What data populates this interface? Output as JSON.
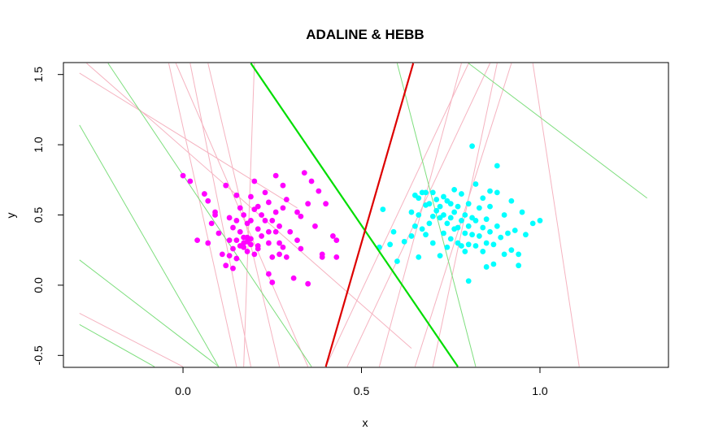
{
  "chart_data": {
    "type": "scatter",
    "title": "ADALINE & HEBB",
    "xlabel": "x",
    "ylabel": "y",
    "xlim": [
      -0.335,
      1.36
    ],
    "ylim": [
      -0.585,
      1.585
    ],
    "x_ticks": [
      "0.0",
      "0.5",
      "1.0"
    ],
    "x_tick_values": [
      0.0,
      0.5,
      1.0
    ],
    "y_ticks": [
      "-0.5",
      "0.0",
      "0.5",
      "1.0",
      "1.5"
    ],
    "y_tick_values": [
      -0.5,
      0.0,
      0.5,
      1.0,
      1.5
    ],
    "grid": false,
    "legend": "none",
    "colors": {
      "class_a": "#ff00ff",
      "class_b": "#00ffff",
      "adaline_iterations": "#7ede7e",
      "hebb_iterations": "#f5b3c0",
      "adaline_final": "#00dd00",
      "hebb_final": "#dd0000"
    },
    "series": [
      {
        "role": "class_a",
        "points": [
          [
            0.0,
            0.78
          ],
          [
            0.02,
            0.74
          ],
          [
            0.04,
            0.32
          ],
          [
            0.06,
            0.65
          ],
          [
            0.07,
            0.6
          ],
          [
            0.07,
            0.3
          ],
          [
            0.08,
            0.44
          ],
          [
            0.09,
            0.52
          ],
          [
            0.09,
            0.5
          ],
          [
            0.1,
            0.37
          ],
          [
            0.11,
            0.22
          ],
          [
            0.12,
            0.14
          ],
          [
            0.12,
            0.71
          ],
          [
            0.13,
            0.48
          ],
          [
            0.13,
            0.32
          ],
          [
            0.14,
            0.41
          ],
          [
            0.14,
            0.26
          ],
          [
            0.14,
            0.12
          ],
          [
            0.15,
            0.64
          ],
          [
            0.15,
            0.46
          ],
          [
            0.15,
            0.32
          ],
          [
            0.15,
            0.19
          ],
          [
            0.16,
            0.55
          ],
          [
            0.16,
            0.38
          ],
          [
            0.16,
            0.28
          ],
          [
            0.17,
            0.5
          ],
          [
            0.17,
            0.34
          ],
          [
            0.17,
            0.3
          ],
          [
            0.17,
            0.27
          ],
          [
            0.18,
            0.44
          ],
          [
            0.18,
            0.34
          ],
          [
            0.18,
            0.31
          ],
          [
            0.18,
            0.24
          ],
          [
            0.19,
            0.63
          ],
          [
            0.19,
            0.46
          ],
          [
            0.19,
            0.33
          ],
          [
            0.19,
            0.29
          ],
          [
            0.2,
            0.74
          ],
          [
            0.2,
            0.54
          ],
          [
            0.2,
            0.22
          ],
          [
            0.21,
            0.56
          ],
          [
            0.21,
            0.4
          ],
          [
            0.21,
            0.28
          ],
          [
            0.21,
            0.26
          ],
          [
            0.22,
            0.5
          ],
          [
            0.22,
            0.35
          ],
          [
            0.23,
            0.66
          ],
          [
            0.23,
            0.46
          ],
          [
            0.24,
            0.59
          ],
          [
            0.24,
            0.38
          ],
          [
            0.24,
            0.3
          ],
          [
            0.24,
            0.08
          ],
          [
            0.25,
            0.46
          ],
          [
            0.25,
            0.2
          ],
          [
            0.26,
            0.78
          ],
          [
            0.26,
            0.52
          ],
          [
            0.26,
            0.38
          ],
          [
            0.27,
            0.42
          ],
          [
            0.27,
            0.3
          ],
          [
            0.27,
            0.22
          ],
          [
            0.28,
            0.71
          ],
          [
            0.28,
            0.55
          ],
          [
            0.28,
            0.27
          ],
          [
            0.29,
            0.61
          ],
          [
            0.29,
            0.2
          ],
          [
            0.3,
            0.38
          ],
          [
            0.31,
            0.05
          ],
          [
            0.32,
            0.52
          ],
          [
            0.32,
            0.32
          ],
          [
            0.33,
            0.49
          ],
          [
            0.33,
            0.26
          ],
          [
            0.34,
            0.8
          ],
          [
            0.35,
            0.58
          ],
          [
            0.35,
            0.01
          ],
          [
            0.36,
            0.74
          ],
          [
            0.37,
            0.42
          ],
          [
            0.38,
            0.67
          ],
          [
            0.39,
            0.22
          ],
          [
            0.39,
            0.2
          ],
          [
            0.4,
            0.58
          ],
          [
            0.42,
            0.35
          ],
          [
            0.43,
            0.32
          ],
          [
            0.43,
            0.2
          ],
          [
            0.25,
            0.02
          ],
          [
            0.13,
            0.21
          ]
        ]
      },
      {
        "role": "class_b",
        "points": [
          [
            0.55,
            0.27
          ],
          [
            0.56,
            0.54
          ],
          [
            0.58,
            0.29
          ],
          [
            0.59,
            0.38
          ],
          [
            0.6,
            0.17
          ],
          [
            0.62,
            0.31
          ],
          [
            0.64,
            0.35
          ],
          [
            0.64,
            0.52
          ],
          [
            0.65,
            0.42
          ],
          [
            0.65,
            0.64
          ],
          [
            0.66,
            0.2
          ],
          [
            0.66,
            0.5
          ],
          [
            0.66,
            0.62
          ],
          [
            0.67,
            0.4
          ],
          [
            0.67,
            0.66
          ],
          [
            0.68,
            0.36
          ],
          [
            0.68,
            0.57
          ],
          [
            0.68,
            0.66
          ],
          [
            0.69,
            0.44
          ],
          [
            0.69,
            0.58
          ],
          [
            0.7,
            0.3
          ],
          [
            0.7,
            0.49
          ],
          [
            0.7,
            0.66
          ],
          [
            0.71,
            0.53
          ],
          [
            0.71,
            0.61
          ],
          [
            0.72,
            0.48
          ],
          [
            0.72,
            0.21
          ],
          [
            0.72,
            0.56
          ],
          [
            0.73,
            0.37
          ],
          [
            0.73,
            0.5
          ],
          [
            0.73,
            0.63
          ],
          [
            0.74,
            0.27
          ],
          [
            0.74,
            0.44
          ],
          [
            0.74,
            0.6
          ],
          [
            0.75,
            0.33
          ],
          [
            0.75,
            0.48
          ],
          [
            0.75,
            0.58
          ],
          [
            0.76,
            0.4
          ],
          [
            0.76,
            0.52
          ],
          [
            0.76,
            0.68
          ],
          [
            0.77,
            0.3
          ],
          [
            0.77,
            0.41
          ],
          [
            0.77,
            0.56
          ],
          [
            0.78,
            0.46
          ],
          [
            0.78,
            0.65
          ],
          [
            0.78,
            0.28
          ],
          [
            0.79,
            0.37
          ],
          [
            0.79,
            0.5
          ],
          [
            0.79,
            0.24
          ],
          [
            0.8,
            0.29
          ],
          [
            0.8,
            0.42
          ],
          [
            0.8,
            0.58
          ],
          [
            0.8,
            0.03
          ],
          [
            0.81,
            0.36
          ],
          [
            0.81,
            0.48
          ],
          [
            0.81,
            0.99
          ],
          [
            0.82,
            0.28
          ],
          [
            0.82,
            0.46
          ],
          [
            0.82,
            0.72
          ],
          [
            0.83,
            0.35
          ],
          [
            0.83,
            0.55
          ],
          [
            0.84,
            0.24
          ],
          [
            0.84,
            0.41
          ],
          [
            0.84,
            0.62
          ],
          [
            0.85,
            0.13
          ],
          [
            0.85,
            0.3
          ],
          [
            0.85,
            0.47
          ],
          [
            0.86,
            0.38
          ],
          [
            0.86,
            0.56
          ],
          [
            0.86,
            0.67
          ],
          [
            0.87,
            0.15
          ],
          [
            0.87,
            0.29
          ],
          [
            0.88,
            0.42
          ],
          [
            0.88,
            0.85
          ],
          [
            0.88,
            0.66
          ],
          [
            0.89,
            0.34
          ],
          [
            0.9,
            0.22
          ],
          [
            0.9,
            0.5
          ],
          [
            0.91,
            0.37
          ],
          [
            0.92,
            0.6
          ],
          [
            0.92,
            0.25
          ],
          [
            0.93,
            0.39
          ],
          [
            0.94,
            0.14
          ],
          [
            0.94,
            0.22
          ],
          [
            0.95,
            0.52
          ],
          [
            0.96,
            0.36
          ],
          [
            0.98,
            0.44
          ],
          [
            1.0,
            0.46
          ]
        ]
      },
      {
        "role": "adaline_iterations",
        "lines": [
          [
            [
              -0.29,
              1.14
            ],
            [
              0.1,
              -0.58
            ]
          ],
          [
            [
              -0.29,
              0.18
            ],
            [
              0.1,
              -0.58
            ]
          ],
          [
            [
              -0.29,
              -0.28
            ],
            [
              -0.08,
              -0.58
            ]
          ],
          [
            [
              -0.21,
              1.58
            ],
            [
              0.36,
              -0.58
            ]
          ],
          [
            [
              0.6,
              1.58
            ],
            [
              0.82,
              -0.58
            ]
          ],
          [
            [
              0.8,
              1.58
            ],
            [
              1.3,
              0.62
            ]
          ]
        ]
      },
      {
        "role": "hebb_iterations",
        "lines": [
          [
            [
              -0.29,
              1.51
            ],
            [
              0.32,
              0.55
            ]
          ],
          [
            [
              -0.27,
              1.58
            ],
            [
              0.64,
              -0.45
            ]
          ],
          [
            [
              -0.29,
              -0.2
            ],
            [
              0.0,
              -0.58
            ]
          ],
          [
            [
              -0.04,
              1.58
            ],
            [
              0.15,
              -0.58
            ]
          ],
          [
            [
              -0.02,
              1.58
            ],
            [
              0.35,
              -0.58
            ]
          ],
          [
            [
              0.02,
              1.58
            ],
            [
              0.19,
              -0.58
            ]
          ],
          [
            [
              0.07,
              1.58
            ],
            [
              0.27,
              -0.58
            ]
          ],
          [
            [
              0.2,
              1.58
            ],
            [
              0.17,
              -0.58
            ]
          ],
          [
            [
              0.4,
              -0.58
            ],
            [
              0.8,
              1.58
            ]
          ],
          [
            [
              0.46,
              -0.58
            ],
            [
              0.86,
              1.58
            ]
          ],
          [
            [
              0.55,
              -0.58
            ],
            [
              0.78,
              1.58
            ]
          ],
          [
            [
              0.65,
              -0.58
            ],
            [
              0.92,
              1.58
            ]
          ],
          [
            [
              0.98,
              1.58
            ],
            [
              1.11,
              -0.58
            ]
          ],
          [
            [
              0.88,
              1.58
            ],
            [
              0.7,
              -0.58
            ]
          ]
        ]
      },
      {
        "role": "adaline_final",
        "lines": [
          [
            [
              0.19,
              1.58
            ],
            [
              0.77,
              -0.58
            ]
          ]
        ]
      },
      {
        "role": "hebb_final",
        "lines": [
          [
            [
              0.4,
              -0.58
            ],
            [
              0.645,
              1.58
            ]
          ]
        ]
      }
    ]
  }
}
